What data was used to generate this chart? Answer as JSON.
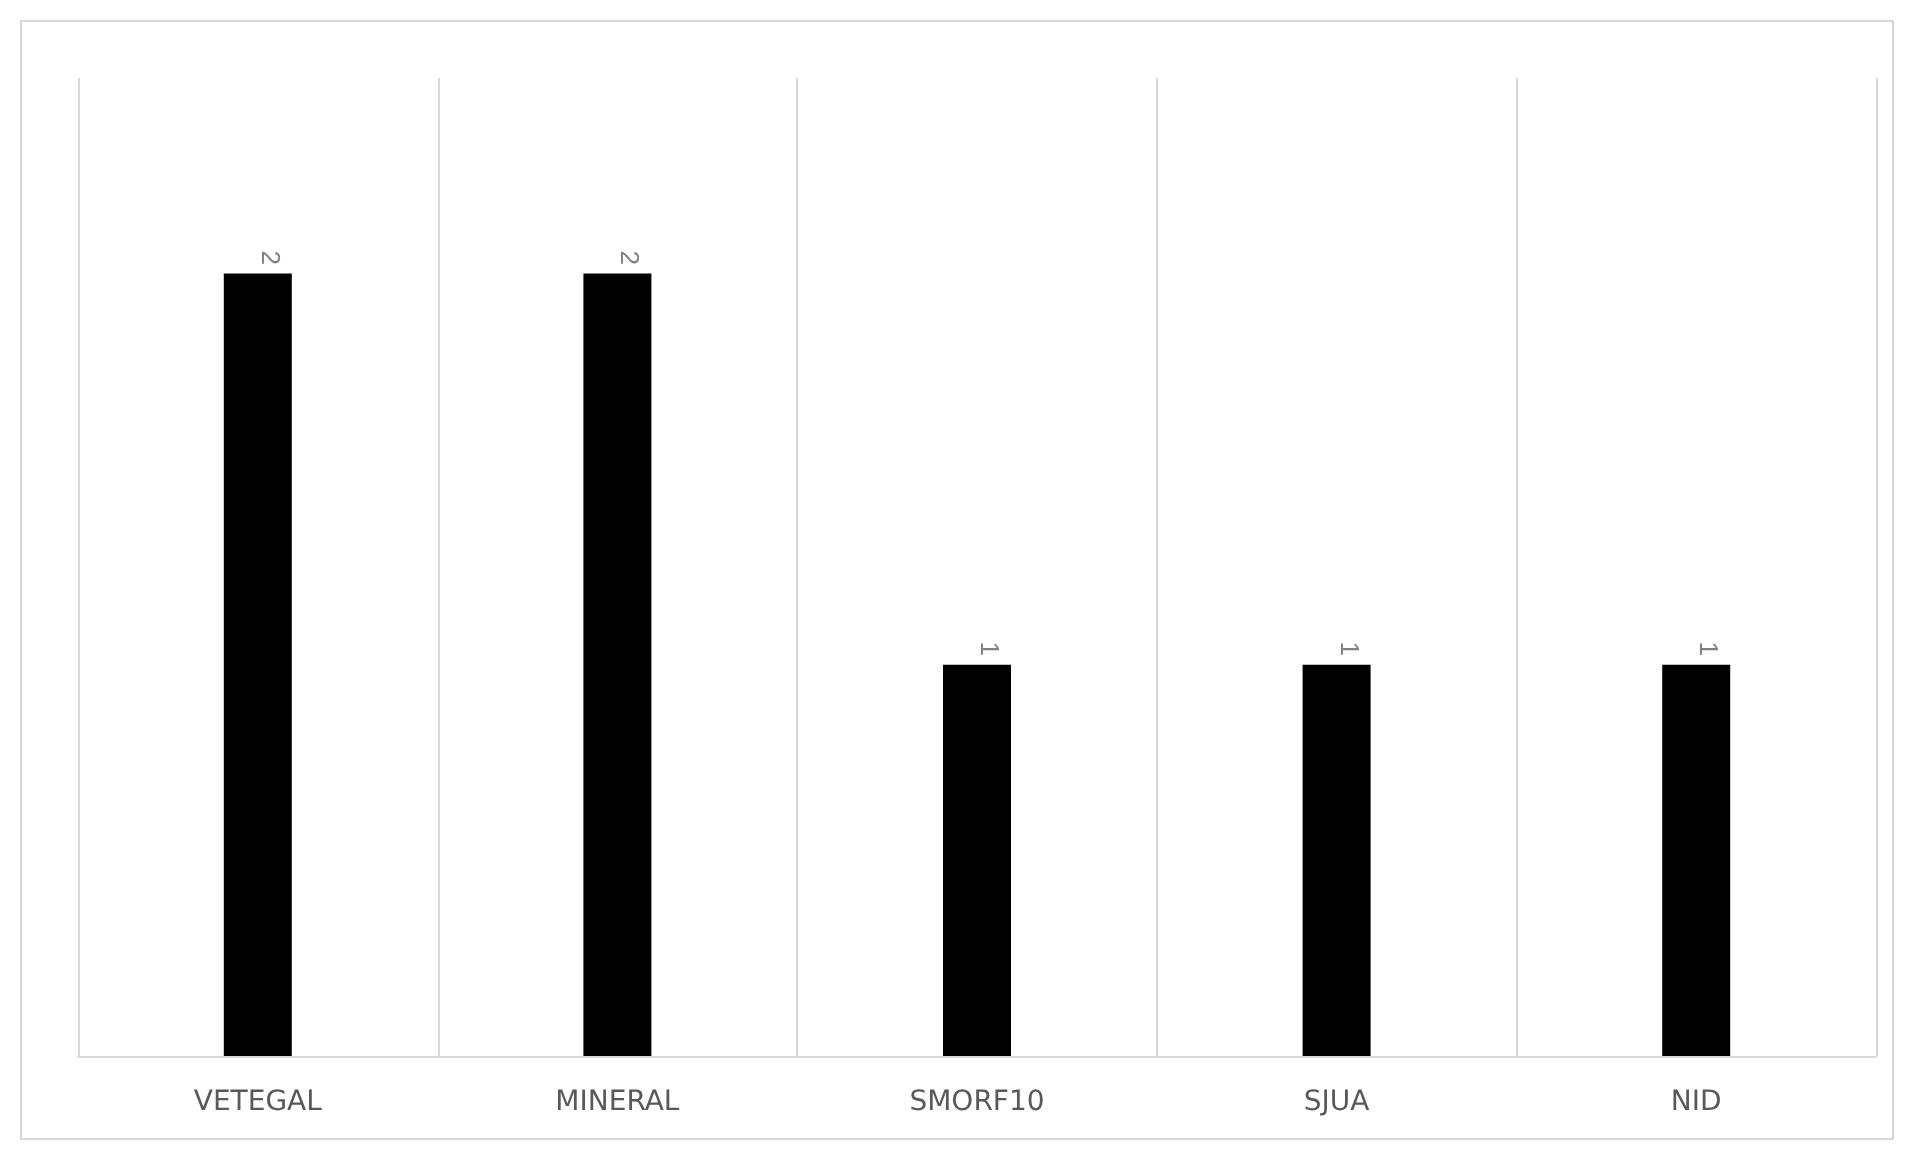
{
  "chart_data": {
    "type": "bar",
    "categories": [
      "VETEGAL",
      "MINERAL",
      "SMORF10",
      "SJUA",
      "NID"
    ],
    "values": [
      2,
      2,
      1,
      1,
      1
    ],
    "color": "#000000",
    "ylim": [
      0,
      2.5
    ],
    "data_labels": true,
    "grid": "x",
    "tick_labels": "x"
  }
}
